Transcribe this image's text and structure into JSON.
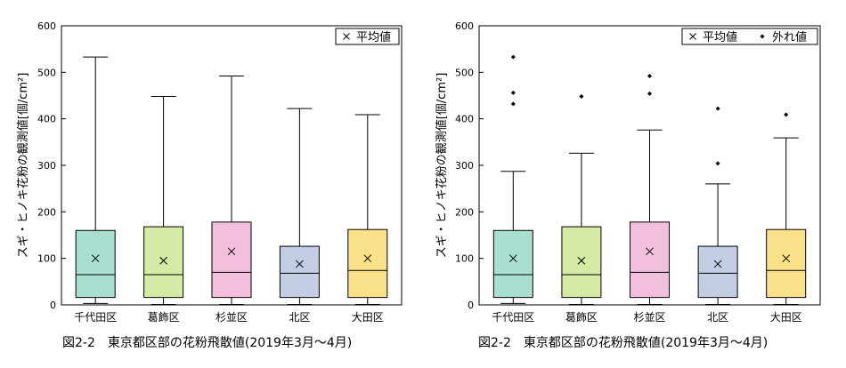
{
  "chart_data": [
    {
      "type": "box",
      "caption": "図2-2　東京都区部の花粉飛散値(2019年3月～4月)",
      "ylabel": "スギ・ヒノキ花粉の観測値[個/cm²]",
      "ylim": [
        0,
        600
      ],
      "yticks": [
        0,
        100,
        200,
        300,
        400,
        500,
        600
      ],
      "categories": [
        "千代田区",
        "葛飾区",
        "杉並区",
        "北区",
        "大田区"
      ],
      "legend": [
        {
          "marker": "×",
          "label": "平均値"
        }
      ],
      "legend_position": "top-right",
      "boxes": [
        {
          "name": "千代田区",
          "min": 3,
          "q1": 16,
          "median": 65,
          "q3": 160,
          "max": 533,
          "mean": 100,
          "color": "#a8dfd0"
        },
        {
          "name": "葛飾区",
          "min": 1,
          "q1": 16,
          "median": 65,
          "q3": 168,
          "max": 448,
          "mean": 95,
          "color": "#d5eba5"
        },
        {
          "name": "杉並区",
          "min": 1,
          "q1": 16,
          "median": 70,
          "q3": 178,
          "max": 492,
          "mean": 115,
          "color": "#f2c0dd"
        },
        {
          "name": "北区",
          "min": 1,
          "q1": 16,
          "median": 68,
          "q3": 126,
          "max": 422,
          "mean": 88,
          "color": "#c3cde4"
        },
        {
          "name": "大田区",
          "min": 1,
          "q1": 16,
          "median": 74,
          "q3": 162,
          "max": 409,
          "mean": 100,
          "color": "#fbe28a"
        }
      ],
      "outliers": []
    },
    {
      "type": "box",
      "caption": "図2-2　東京都区部の花粉飛散値(2019年3月～4月)",
      "ylabel": "スギ・ヒノキ花粉の観測値[個/cm²]",
      "ylim": [
        0,
        600
      ],
      "yticks": [
        0,
        100,
        200,
        300,
        400,
        500,
        600
      ],
      "categories": [
        "千代田区",
        "葛飾区",
        "杉並区",
        "北区",
        "大田区"
      ],
      "legend": [
        {
          "marker": "×",
          "label": "平均値"
        },
        {
          "marker": "◆",
          "label": "外れ値"
        }
      ],
      "legend_position": "top-right",
      "boxes": [
        {
          "name": "千代田区",
          "min": 3,
          "q1": 16,
          "median": 65,
          "q3": 160,
          "max": 287,
          "mean": 100,
          "color": "#a8dfd0"
        },
        {
          "name": "葛飾区",
          "min": 1,
          "q1": 16,
          "median": 65,
          "q3": 168,
          "max": 326,
          "mean": 95,
          "color": "#d5eba5"
        },
        {
          "name": "杉並区",
          "min": 1,
          "q1": 16,
          "median": 70,
          "q3": 178,
          "max": 376,
          "mean": 115,
          "color": "#f2c0dd"
        },
        {
          "name": "北区",
          "min": 1,
          "q1": 16,
          "median": 68,
          "q3": 126,
          "max": 260,
          "mean": 88,
          "color": "#c3cde4"
        },
        {
          "name": "大田区",
          "min": 1,
          "q1": 16,
          "median": 74,
          "q3": 162,
          "max": 359,
          "mean": 100,
          "color": "#fbe28a"
        }
      ],
      "outliers": [
        {
          "name": "千代田区",
          "values": [
            533,
            456,
            432
          ]
        },
        {
          "name": "葛飾区",
          "values": [
            448
          ]
        },
        {
          "name": "杉並区",
          "values": [
            492,
            454
          ]
        },
        {
          "name": "北区",
          "values": [
            422,
            304
          ]
        },
        {
          "name": "大田区",
          "values": [
            409
          ]
        }
      ]
    }
  ]
}
